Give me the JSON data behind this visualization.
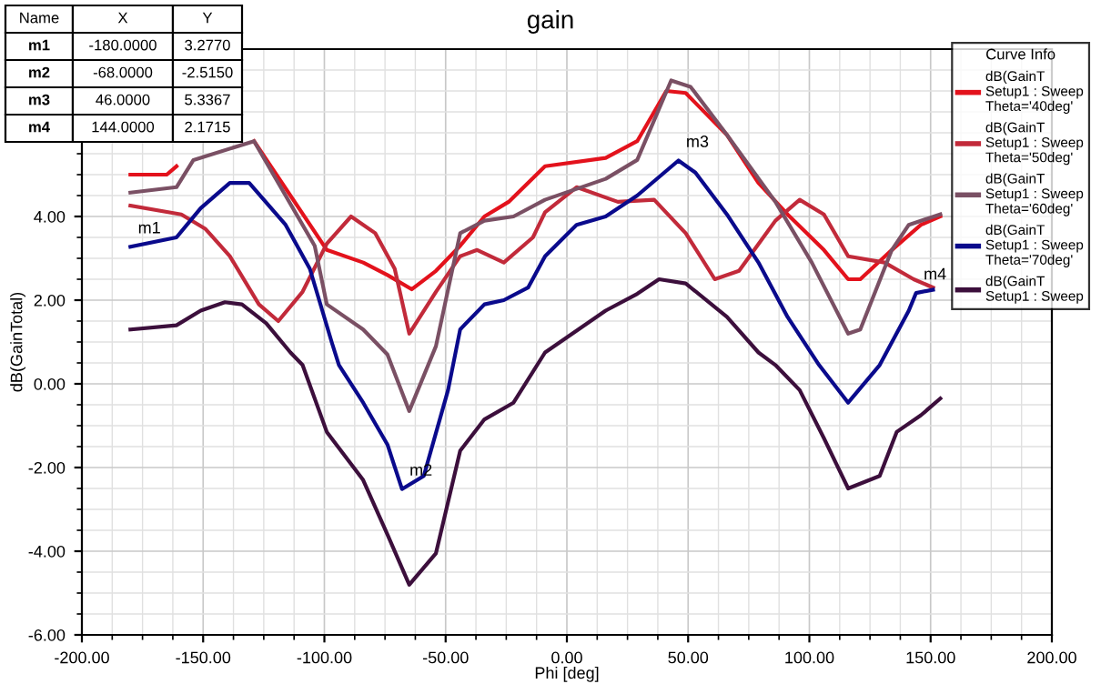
{
  "chart_data": {
    "type": "line",
    "title": "gain",
    "xlabel": "Phi [deg]",
    "ylabel": "dB(GainTotal)",
    "legend_title": "Curve Info",
    "xlim": [
      -200,
      200
    ],
    "xticks": [
      {
        "value": -200,
        "label": "-200.00"
      },
      {
        "value": -150,
        "label": "-150.00"
      },
      {
        "value": -100,
        "label": "-100.00"
      },
      {
        "value": -50,
        "label": "-50.00"
      },
      {
        "value": 0,
        "label": "0.00"
      },
      {
        "value": 50,
        "label": "50.00"
      },
      {
        "value": 100,
        "label": "100.00"
      },
      {
        "value": 150,
        "label": "150.00"
      },
      {
        "value": 200,
        "label": "200.00"
      }
    ],
    "ylim": [
      -6,
      8
    ],
    "yticks": [
      {
        "value": -6,
        "label": "-6.00"
      },
      {
        "value": -4,
        "label": "-4.00"
      },
      {
        "value": -2,
        "label": "-2.00"
      },
      {
        "value": 0,
        "label": "0.00"
      },
      {
        "value": 2,
        "label": "2.00"
      },
      {
        "value": 4,
        "label": "4.00"
      }
    ],
    "grid": true,
    "legend": "top right",
    "marker": "none",
    "line_style": "solid",
    "series": [
      {
        "name": "dB(GainT\nSetup1 : Sweep\nTheta='40deg'",
        "color": "#e3121c",
        "x": [
          -180,
          -165,
          -161,
          -151,
          -129,
          -99,
          -84,
          -74,
          -64,
          -54,
          -44,
          -34,
          -24,
          -9,
          16,
          29,
          41,
          49,
          66,
          79,
          91,
          106,
          116,
          121,
          134,
          146,
          154
        ],
        "values": [
          5.0,
          5.0,
          5.2,
          null,
          5.8,
          3.2,
          2.9,
          2.6,
          2.26,
          2.7,
          3.3,
          4.0,
          4.35,
          5.2,
          5.4,
          5.8,
          7.0,
          6.95,
          5.95,
          4.8,
          4.05,
          3.2,
          2.5,
          2.5,
          3.2,
          3.8,
          4.0
        ]
      },
      {
        "name": "dB(GainT\nSetup1 : Sweep\nTheta='50deg'",
        "color": "#c22a3a",
        "x": [
          -180,
          -159,
          -149,
          -139,
          -127,
          -119,
          -109,
          -99,
          -89,
          -79,
          -71,
          -65,
          -54,
          -44,
          -37,
          -26,
          -14,
          -9,
          4,
          21,
          36,
          49,
          61,
          71,
          86,
          96,
          106,
          116,
          131,
          143,
          151
        ],
        "values": [
          4.26,
          4.05,
          3.7,
          3.05,
          1.9,
          1.5,
          2.2,
          3.35,
          4.0,
          3.6,
          2.75,
          1.2,
          2.2,
          3.05,
          3.2,
          2.9,
          3.5,
          4.1,
          4.7,
          4.35,
          4.4,
          3.6,
          2.5,
          2.7,
          3.9,
          4.4,
          4.05,
          3.05,
          2.9,
          2.5,
          2.3
        ]
      },
      {
        "name": "dB(GainT\nSetup1 : Sweep\nTheta='60deg'",
        "color": "#7a5064",
        "x": [
          -180,
          -161,
          -154,
          -129,
          -104,
          -99,
          -84,
          -74,
          -65,
          -54,
          -44,
          -34,
          -22,
          -9,
          16,
          29,
          43,
          51,
          66,
          86,
          101,
          116,
          121,
          134,
          141,
          154
        ],
        "values": [
          4.57,
          4.7,
          5.35,
          5.8,
          3.3,
          1.9,
          1.3,
          0.7,
          -0.65,
          0.9,
          3.6,
          3.9,
          4.0,
          4.4,
          4.9,
          5.35,
          7.25,
          7.1,
          5.95,
          4.35,
          2.9,
          1.2,
          1.3,
          3.2,
          3.8,
          4.05
        ]
      },
      {
        "name": "dB(GainT\nSetup1 : Sweep\nTheta='70deg'",
        "color": "#0a0a8c",
        "x": [
          -180,
          -161,
          -151,
          -139,
          -131,
          -116,
          -106,
          -97,
          -94,
          -84,
          -74,
          -68,
          -59,
          -49,
          -44,
          -34,
          -26,
          -16,
          -9,
          4,
          16,
          29,
          46,
          53,
          66,
          79,
          91,
          104,
          116,
          129,
          141,
          144,
          151
        ],
        "values": [
          3.277,
          3.5,
          4.2,
          4.8,
          4.8,
          3.8,
          2.75,
          1.0,
          0.45,
          -0.45,
          -1.45,
          -2.515,
          -2.2,
          -0.15,
          1.3,
          1.9,
          2.0,
          2.3,
          3.05,
          3.8,
          4.0,
          4.5,
          5.3367,
          5.05,
          4.05,
          2.9,
          1.6,
          0.45,
          -0.45,
          0.45,
          1.75,
          2.1715,
          2.25
        ]
      },
      {
        "name": "dB(GainT\nSetup1 : Sweep",
        "color": "#3c0f3c",
        "x": [
          -180,
          -161,
          -151,
          -141,
          -134,
          -124,
          -114,
          -109,
          -99,
          -84,
          -74,
          -65,
          -54,
          -44,
          -34,
          -22,
          -9,
          16,
          29,
          38,
          49,
          66,
          79,
          86,
          96,
          106,
          116,
          129,
          136,
          146,
          154
        ],
        "values": [
          1.3,
          1.4,
          1.75,
          1.95,
          1.9,
          1.45,
          0.75,
          0.45,
          -1.15,
          -2.3,
          -3.6,
          -4.8,
          -4.05,
          -1.6,
          -0.85,
          -0.45,
          0.75,
          1.75,
          2.15,
          2.5,
          2.4,
          1.6,
          0.75,
          0.45,
          -0.15,
          -1.3,
          -2.5,
          -2.2,
          -1.15,
          -0.75,
          -0.35
        ]
      }
    ],
    "annotations": [
      {
        "text": "m1",
        "x": -180,
        "y": 3.277
      },
      {
        "text": "m2",
        "x": -68,
        "y": -2.515
      },
      {
        "text": "m3",
        "x": 46,
        "y": 5.3367
      },
      {
        "text": "m4",
        "x": 144,
        "y": 2.1715
      },
      "Name",
      "X",
      "Y",
      "m1",
      "-180.0000",
      "3.2770",
      "m2",
      "-68.0000",
      "-2.5150",
      "m3",
      "46.0000",
      "5.3367",
      "m4",
      "144.0000",
      "2.1715"
    ]
  }
}
